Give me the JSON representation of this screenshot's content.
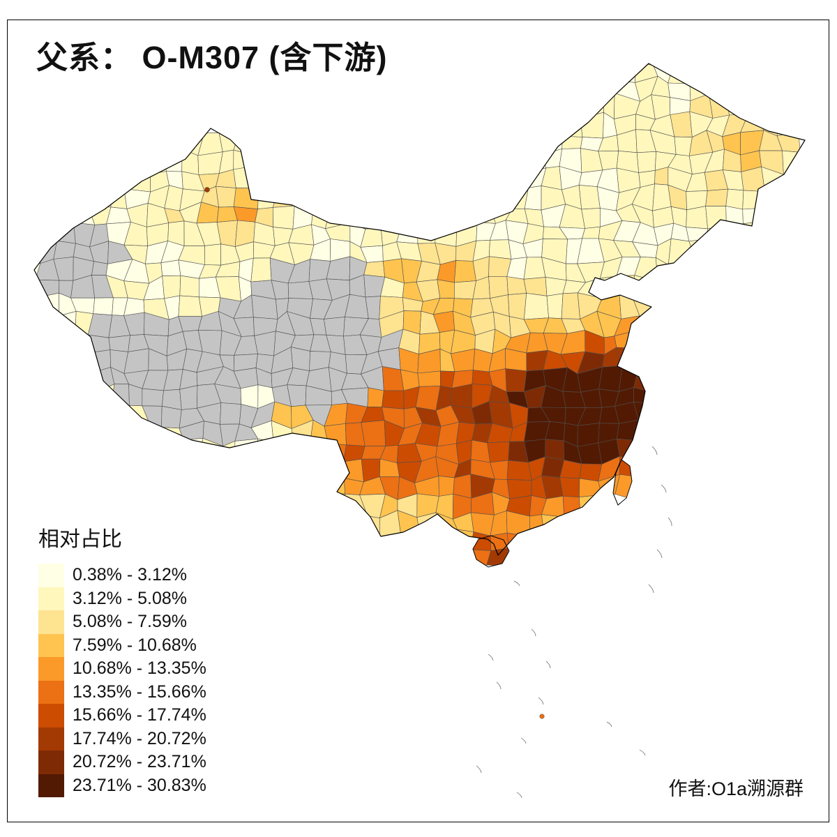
{
  "title": "父系： O-M307 (含下游)",
  "legend": {
    "title": "相对占比",
    "classes": [
      {
        "label": "0.38% - 3.12%",
        "color": "#FFFFE5"
      },
      {
        "label": "3.12% - 5.08%",
        "color": "#FFF7BC"
      },
      {
        "label": "5.08% - 7.59%",
        "color": "#FEE391"
      },
      {
        "label": "7.59% - 10.68%",
        "color": "#FEC44F"
      },
      {
        "label": "10.68% - 13.35%",
        "color": "#FB9A29"
      },
      {
        "label": "13.35% - 15.66%",
        "color": "#EC7014"
      },
      {
        "label": "15.66% - 17.74%",
        "color": "#CC4C02"
      },
      {
        "label": "17.74% - 20.72%",
        "color": "#A33A03"
      },
      {
        "label": "20.72% - 23.71%",
        "color": "#7E2B05"
      },
      {
        "label": "23.71% - 30.83%",
        "color": "#521A03"
      }
    ],
    "no_data_color": "#C4C4C4"
  },
  "attribution": "作者:O1a溯源群",
  "colors": {
    "background": "#FFFFFF",
    "frame": "#000000",
    "boundary": "#000000",
    "cell_border": "#4F4F4F"
  }
}
